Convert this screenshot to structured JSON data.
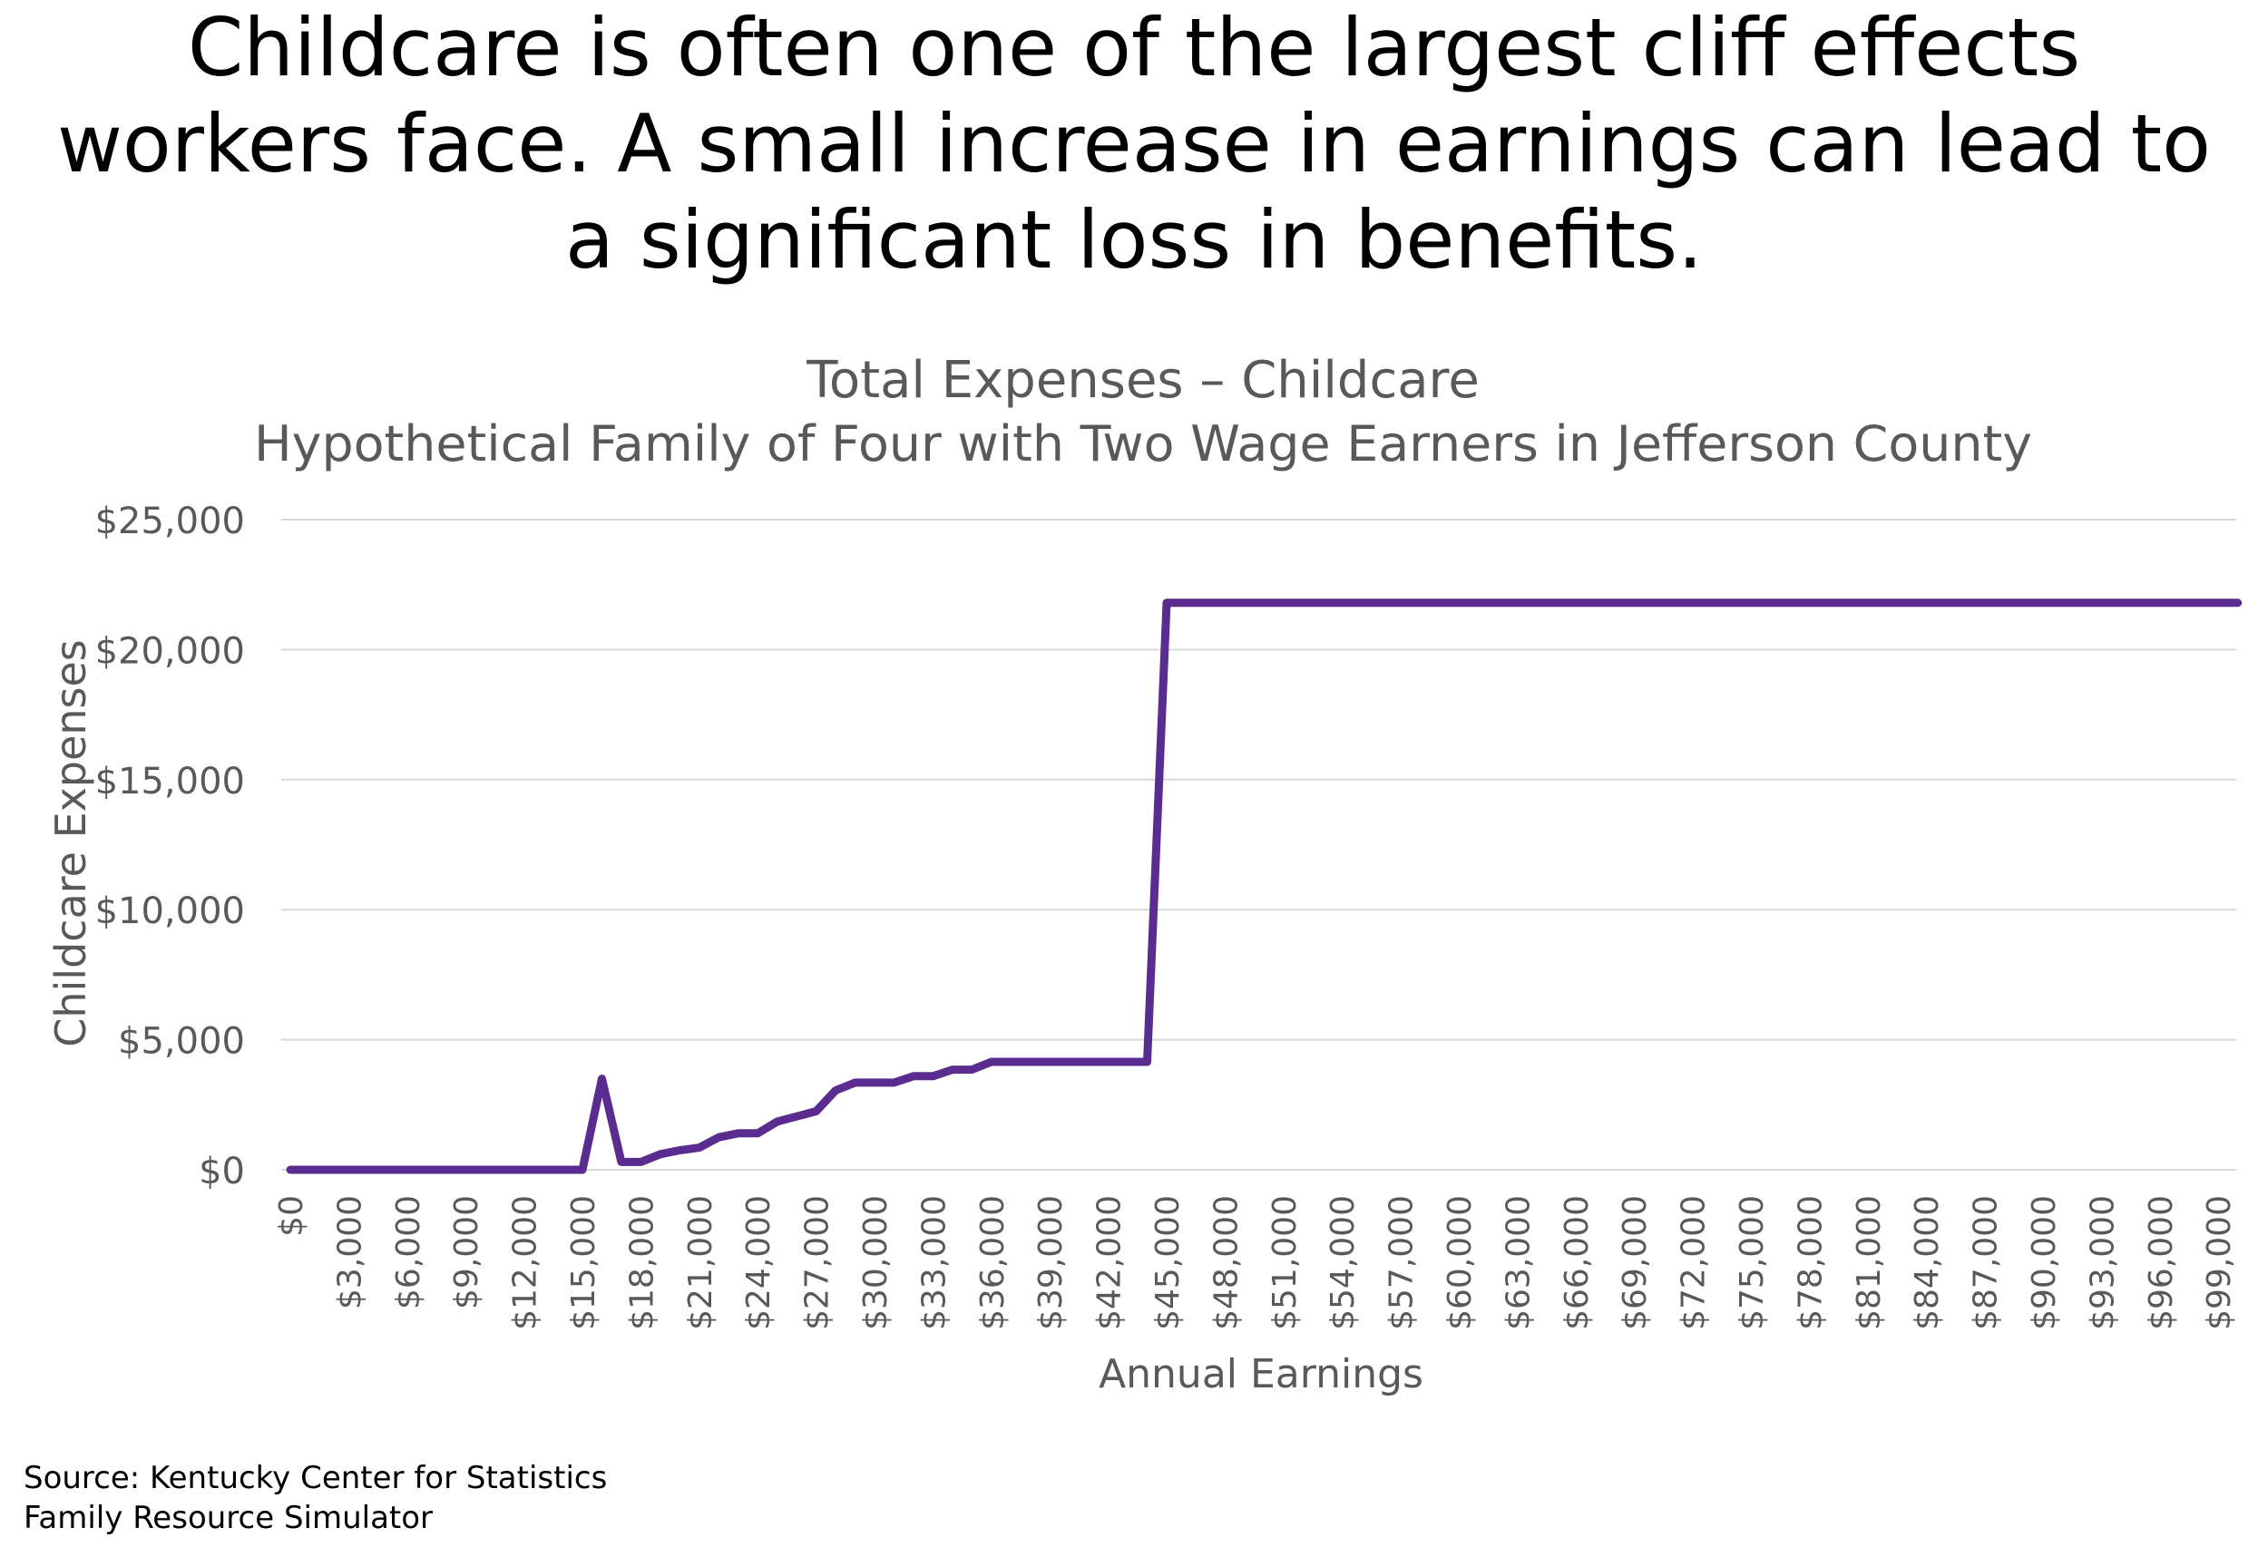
{
  "headline": {
    "line1": "Childcare is often one of the largest cliff effects",
    "line2": "workers face. A small increase in earnings can lead to",
    "line3": "a significant loss in benefits."
  },
  "source": {
    "line1": "Source: Kentucky Center for Statistics",
    "line2": "Family Resource Simulator"
  },
  "chart_data": {
    "type": "line",
    "title": "Total Expenses – Childcare",
    "subtitle": "Hypothetical Family of Four with Two Wage Earners in Jefferson County",
    "xlabel": "Annual Earnings",
    "ylabel": "Childcare Expenses",
    "xlim": [
      0,
      100000
    ],
    "ylim": [
      0,
      25000
    ],
    "yticks": [
      0,
      5000,
      10000,
      15000,
      20000,
      25000
    ],
    "ytick_labels": [
      "$0",
      "$5,000",
      "$10,000",
      "$15,000",
      "$20,000",
      "$25,000"
    ],
    "xticks": [
      0,
      3000,
      6000,
      9000,
      12000,
      15000,
      18000,
      21000,
      24000,
      27000,
      30000,
      33000,
      36000,
      39000,
      42000,
      45000,
      48000,
      51000,
      54000,
      57000,
      60000,
      63000,
      66000,
      69000,
      72000,
      75000,
      78000,
      81000,
      84000,
      87000,
      90000,
      93000,
      96000,
      99000
    ],
    "xtick_labels": [
      "$0",
      "$3,000",
      "$6,000",
      "$9,000",
      "$12,000",
      "$15,000",
      "$18,000",
      "$21,000",
      "$24,000",
      "$27,000",
      "$30,000",
      "$33,000",
      "$36,000",
      "$39,000",
      "$42,000",
      "$45,000",
      "$48,000",
      "$51,000",
      "$54,000",
      "$57,000",
      "$60,000",
      "$63,000",
      "$66,000",
      "$69,000",
      "$72,000",
      "$75,000",
      "$78,000",
      "$81,000",
      "$84,000",
      "$87,000",
      "$90,000",
      "$93,000",
      "$96,000",
      "$99,000"
    ],
    "grid": true,
    "line_color": "#5b2c8f",
    "series": [
      {
        "x": [
          0,
          15000,
          16000,
          17000,
          18000,
          19000,
          20000,
          21000,
          22000,
          23000,
          24000,
          25000,
          26000,
          27000,
          28000,
          29000,
          30000,
          31000,
          32000,
          33000,
          34000,
          35000,
          36000,
          44000,
          45000,
          100000
        ],
        "values": [
          0,
          0,
          3500,
          300,
          300,
          600,
          750,
          850,
          1250,
          1400,
          1400,
          1850,
          2050,
          2250,
          3050,
          3350,
          3350,
          3350,
          3600,
          3600,
          3850,
          3850,
          4150,
          4150,
          21800,
          21800
        ]
      }
    ]
  }
}
